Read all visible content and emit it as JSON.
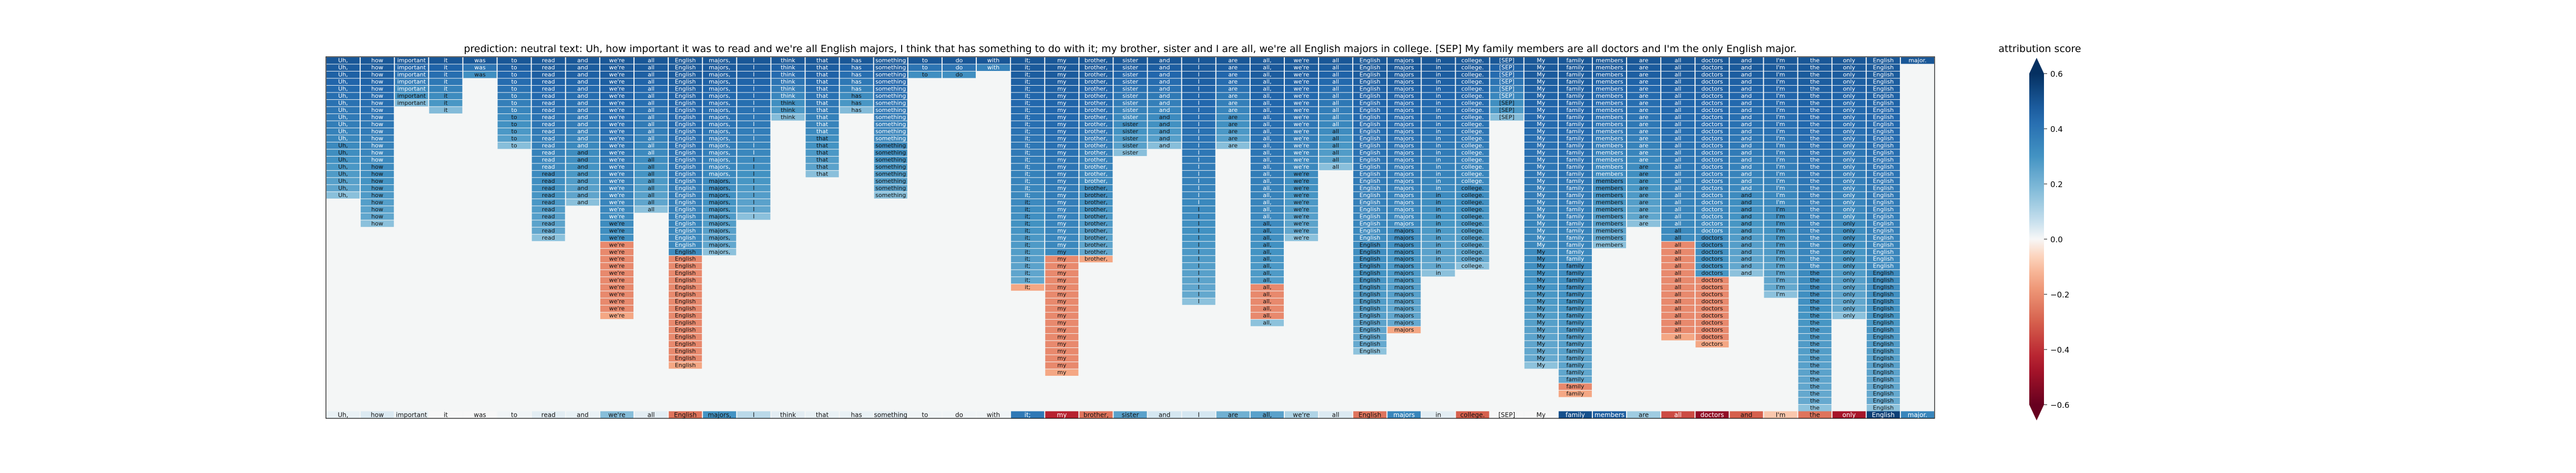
{
  "chart_data": {
    "type": "heatmap",
    "title": "prediction:  neutral      text:  Uh, how important it was to read and we're all English majors, I think that has something to do with it; my brother, sister and I are all, we're all English majors in college. [SEP] My family members are all doctors and I'm the only English major.",
    "tokens": [
      "Uh,",
      "how",
      "important",
      "it",
      "was",
      "to",
      "read",
      "and",
      "we're",
      "all",
      "English",
      "majors,",
      "I",
      "think",
      "that",
      "has",
      "something",
      "to",
      "do",
      "with",
      "it;",
      "my",
      "brother,",
      "sister",
      "and",
      "I",
      "are",
      "all,",
      "we're",
      "all",
      "English",
      "majors",
      "in",
      "college.",
      "[SEP]",
      "My",
      "family",
      "members",
      "are",
      "all",
      "doctors",
      "and",
      "I'm",
      "the",
      "only",
      "English",
      "major."
    ],
    "column_heights": [
      20,
      24,
      7,
      8,
      3,
      13,
      26,
      21,
      37,
      22,
      44,
      28,
      23,
      9,
      17,
      8,
      20,
      3,
      3,
      2,
      33,
      45,
      29,
      14,
      13,
      35,
      13,
      38,
      26,
      16,
      42,
      39,
      31,
      30,
      9,
      44,
      48,
      27,
      24,
      40,
      41,
      31,
      34,
      50,
      37,
      50,
      1
    ],
    "negative_fade": [
      [
        8,
        26,
        38
      ],
      [
        10,
        28,
        45
      ],
      [
        11,
        36,
        46
      ],
      [
        20,
        32,
        34
      ],
      [
        21,
        28,
        48
      ],
      [
        22,
        28,
        28
      ],
      [
        27,
        32,
        36
      ],
      [
        31,
        38,
        40
      ],
      [
        33,
        36,
        40
      ],
      [
        36,
        46,
        48
      ],
      [
        39,
        26,
        41
      ],
      [
        40,
        31,
        48
      ],
      [
        41,
        35,
        35
      ],
      [
        44,
        43,
        45
      ]
    ],
    "bottom_row_values": [
      0.02,
      0.04,
      0.02,
      0.0,
      0.0,
      0.01,
      0.03,
      0.02,
      0.2,
      0.03,
      -0.3,
      0.35,
      0.1,
      0.03,
      0.02,
      0.02,
      0.03,
      0.01,
      0.01,
      0.01,
      0.45,
      -0.5,
      -0.3,
      0.3,
      0.05,
      0.05,
      0.25,
      0.3,
      0.12,
      0.04,
      -0.3,
      0.4,
      0.03,
      -0.35,
      0.0,
      0.0,
      0.6,
      0.55,
      0.15,
      -0.4,
      -0.6,
      -0.35,
      -0.1,
      -0.3,
      -0.55,
      0.65,
      0.4
    ],
    "colorbar": {
      "label": "attribution score",
      "ticks": [
        "0.6",
        "0.4",
        "0.2",
        "0.0",
        "−0.2",
        "−0.4",
        "−0.6"
      ],
      "range": [
        -0.6,
        0.6
      ],
      "extend": "both",
      "cmap": "RdBu"
    }
  }
}
